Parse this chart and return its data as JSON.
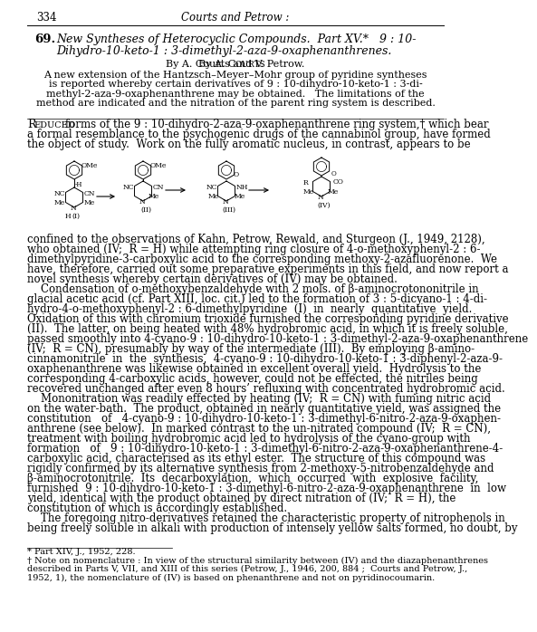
{
  "page_number": "334",
  "header_center": "Courts and Petrow :",
  "article_number": "69.",
  "bg_color": "#ffffff",
  "text_color": "#000000",
  "title_line1": "New Syntheses of Heterocyclic Compounds.  Part XV.*   9 : 10-",
  "title_line2": "Dihydro-10-keto-1 : 3-dimethyl-2-aza-9-oxaphenanthrenes.",
  "byline": "By A. Courts and V. Petrow.",
  "abstract_lines": [
    "A new extension of the Hantzsch–Meyer–Mohr group of pyridine syntheses",
    "is reported whereby certain derivatives of 9 : 10-dihydro-10-keto-1 : 3-di-",
    "methyl-2-aza-9-oxaphenanthrene may be obtained.   The limitations of the",
    "method are indicated and the nitration of the parent ring system is described."
  ],
  "body1_lines": [
    "forms of the 9 : 10-dihydro-2-aza-9-oxaphenanthrene ring system,† which bear",
    "a formal resemblance to the psychogenic drugs of the cannabinol group, have formed",
    "the object of study.  Work on the fully aromatic nucleus, in contrast, appears to be"
  ],
  "body2_lines": [
    "confined to the observations of Kahn, Petrow, Rewald, and Sturgeon (J., 1949, 2128),",
    "who obtained (IV;  R = H) while attempting ring closure of 4-o-methoxyphenyl-2 : 6-",
    "dimethylpyridine-3-carboxylic acid to the corresponding methoxy-2-azafluorenone.  We",
    "have, therefore, carried out some preparative experiments in this field, and now report a",
    "novel synthesis whereby certain derivatives of (IV) may be obtained."
  ],
  "body3_lines": [
    "    Condensation of o-methoxybenzaldehyde with 2 mols. of β-aminocrotononitrile in",
    "glacial acetic acid (cf. Part XIII, loc. cit.) led to the formation of 3 : 5-dicyano-1 : 4-di-",
    "hydro-4-o-methoxyphenyl-2 : 6-dimethylpyridine  (I)  in  nearly  quantitative  yield.",
    "Oxidation of this with chromium trioxide furnished the corresponding pyridine derivative",
    "(II).  The latter, on being heated with 48% hydrobromic acid, in which it is freely soluble,",
    "passed smoothly into 4-cyano-9 : 10-dihydro-10-keto-1 : 3-dimethyl-2-aza-9-oxaphenanthrene",
    "(IV;  R = CN), presumably by way of the intermediate (III).  By employing β-amino-",
    "cinnamonitrile  in  the  synthesis,  4-cyano-9 : 10-dihydro-10-keto-1 : 3-diphenyl-2-aza-9-",
    "oxaphenanthrene was likewise obtained in excellent overall yield.  Hydrolysis to the",
    "corresponding 4-carboxylic acids, however, could not be effected, the nitriles being",
    "recovered unchanged after even 8 hours’ refluxing with concentrated hydrobromic acid."
  ],
  "body4_lines": [
    "    Mononitration was readily effected by heating (IV;  R = CN) with fuming nitric acid",
    "on the water-bath.  The product, obtained in nearly quantitative yield, was assigned the",
    "constitution   of   4-cyano-9 : 10-dihydro-10-keto-1 : 3-dimethyl-6-nitro-2-aza-9-oxaphen-",
    "anthrene (see below).  In marked contrast to the un-nitrated compound (IV;  R = CN),",
    "treatment with boiling hydrobromic acid led to hydrolysis of the cyano-group with",
    "formation   of   9 : 10-dihydro-10-keto-1 : 3-dimethyl-6-nitro-2-aza-9-oxaphenanthrene-4-",
    "carboxylic acid, characterised as its ethyl ester.  The structure of this compound was",
    "rigidly confirmed by its alternative synthesis from 2-methoxy-5-nitrobenzaldehyde and",
    "β-aminocrotonitrile.  Its  decarboxylation,  which  occurred  with  explosive  facility,",
    "furnished  9 : 10-dihydro-10-keto-1 : 3-dimethyl-6-nitro-2-aza-9-oxaphenanthrene  in  low",
    "yield, identical with the product obtained by direct nitration of (IV;  R = H), the",
    "constitution of which is accordingly established."
  ],
  "body5_lines": [
    "    The foregoing nitro-derivatives retained the characteristic property of nitrophenols in",
    "being freely soluble in alkali with production of intensely yellow salts formed, no doubt, by"
  ],
  "footnote1": "* Part XIV, J., 1952, 228.",
  "footnote2_lines": [
    "† Note on nomenclature : In view of the structural similarity between (IV) and the diazaphenanthrenes",
    "described in Parts V, VII, and XIII of this series (Petrow, J., 1946, 200, 884 ;  Courts and Petrow, J.,",
    "1952, 1), the nomenclature of (IV) is based on phenanthrene and not on pyridinocoumarin."
  ]
}
